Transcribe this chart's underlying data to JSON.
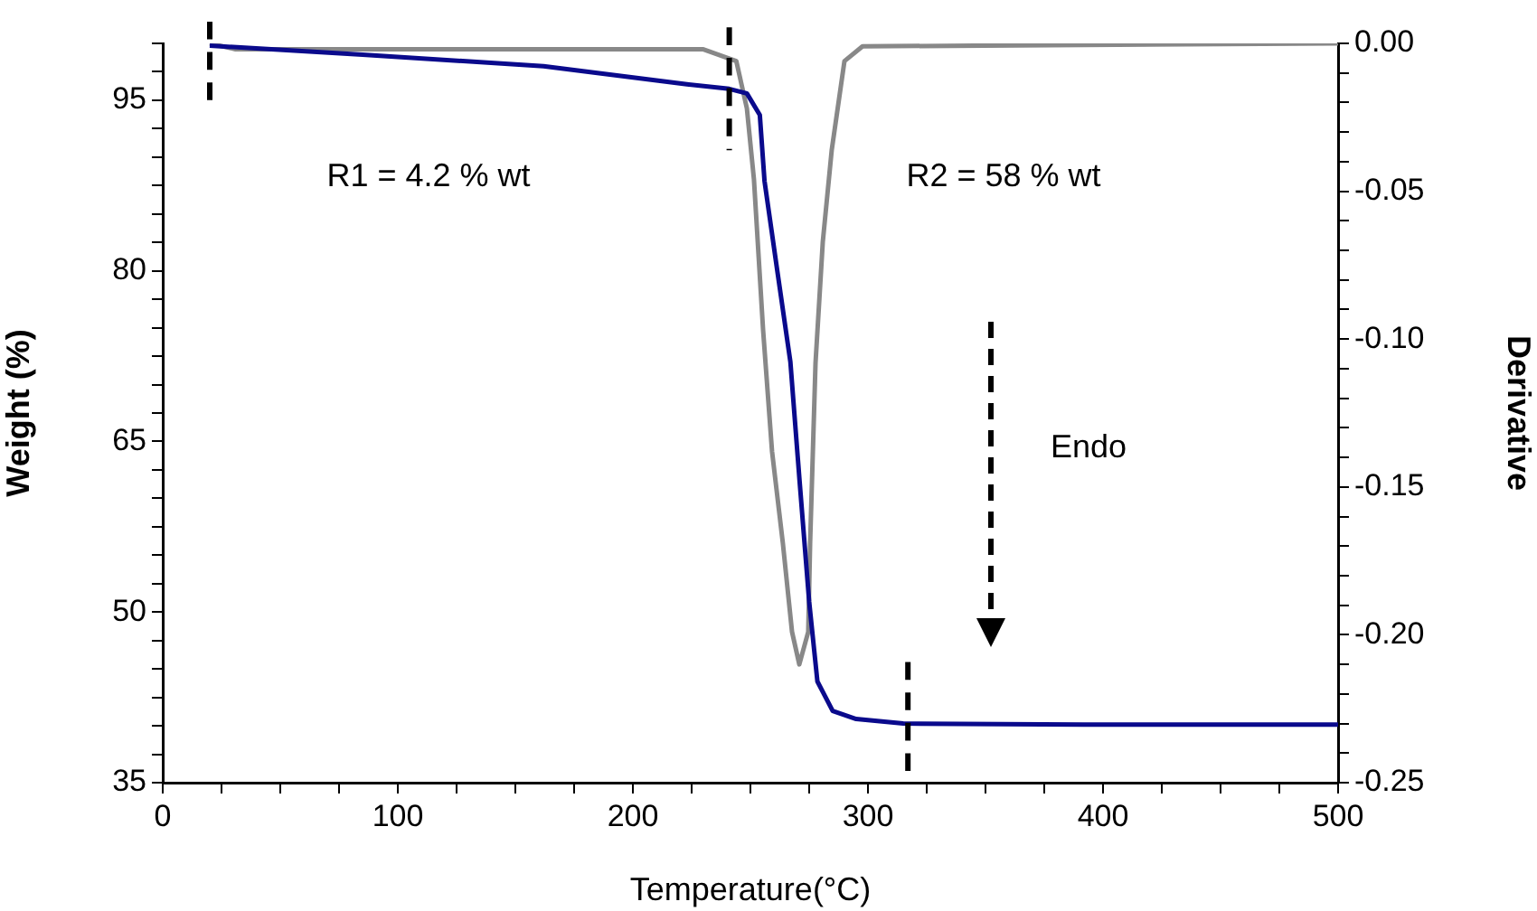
{
  "chart_data": {
    "type": "line",
    "xlabel": "Temperature(°C)",
    "ylabel": "Weight (%)",
    "y2label": "Derivative",
    "xlim": [
      0,
      500
    ],
    "xticks": [
      0,
      {
        "value": 25,
        "label": null
      },
      100,
      {
        "value": 50,
        "label": null
      },
      {
        "value": 75,
        "label": null
      },
      {
        "value": 125,
        "label": null
      },
      {
        "value": 150,
        "label": null
      },
      {
        "value": 175,
        "label": null
      },
      200,
      {
        "value": 225,
        "label": null
      },
      {
        "value": 250,
        "label": null
      },
      {
        "value": 275,
        "label": null
      },
      300,
      {
        "value": 325,
        "label": null
      },
      {
        "value": 350,
        "label": null
      },
      {
        "value": 375,
        "label": null
      },
      400,
      {
        "value": 425,
        "label": null
      },
      {
        "value": 450,
        "label": null
      },
      {
        "value": 475,
        "label": null
      },
      500
    ],
    "ylim": [
      35,
      100
    ],
    "yticks": [
      35,
      {
        "value": 37.5,
        "label": null
      },
      {
        "value": 40,
        "label": null
      },
      {
        "value": 42.5,
        "label": null
      },
      {
        "value": 45,
        "label": null
      },
      {
        "value": 47.5,
        "label": null
      },
      50,
      {
        "value": 52.5,
        "label": null
      },
      {
        "value": 55,
        "label": null
      },
      {
        "value": 57.5,
        "label": null
      },
      {
        "value": 60,
        "label": null
      },
      {
        "value": 62.5,
        "label": null
      },
      65,
      {
        "value": 67.5,
        "label": null
      },
      {
        "value": 70,
        "label": null
      },
      {
        "value": 72.5,
        "label": null
      },
      {
        "value": 75,
        "label": null
      },
      {
        "value": 77.5,
        "label": null
      },
      80,
      {
        "value": 82.5,
        "label": null
      },
      {
        "value": 85,
        "label": null
      },
      {
        "value": 87.5,
        "label": null
      },
      {
        "value": 90,
        "label": null
      },
      {
        "value": 92.5,
        "label": null
      },
      95,
      {
        "value": 97.5,
        "label": null
      },
      {
        "value": 100,
        "label": null
      }
    ],
    "y2lim": [
      -0.25,
      0
    ],
    "y2ticks": [
      {
        "value": -0.25,
        "label": "-0.25"
      },
      {
        "value": -0.24,
        "label": null
      },
      {
        "value": -0.23,
        "label": null
      },
      {
        "value": -0.22,
        "label": null
      },
      {
        "value": -0.21,
        "label": null
      },
      {
        "value": -0.2,
        "label": "-0.20"
      },
      {
        "value": -0.19,
        "label": null
      },
      {
        "value": -0.18,
        "label": null
      },
      {
        "value": -0.17,
        "label": null
      },
      {
        "value": -0.16,
        "label": null
      },
      {
        "value": -0.15,
        "label": "-0.15"
      },
      {
        "value": -0.14,
        "label": null
      },
      {
        "value": -0.13,
        "label": null
      },
      {
        "value": -0.12,
        "label": null
      },
      {
        "value": -0.11,
        "label": null
      },
      {
        "value": -0.1,
        "label": "-0.10"
      },
      {
        "value": -0.09,
        "label": null
      },
      {
        "value": -0.08,
        "label": null
      },
      {
        "value": -0.07,
        "label": null
      },
      {
        "value": -0.06,
        "label": null
      },
      {
        "value": -0.05,
        "label": "-0.05"
      },
      {
        "value": -0.04,
        "label": null
      },
      {
        "value": -0.03,
        "label": null
      },
      {
        "value": -0.02,
        "label": null
      },
      {
        "value": -0.01,
        "label": null
      },
      {
        "value": 0,
        "label": "0.00"
      }
    ],
    "grid": false,
    "legend": false,
    "marker": "none",
    "line_style": "solid",
    "series": [
      {
        "color": "#0a0a8c",
        "x": [
          20,
          85,
          162,
          223,
          241,
          248.5,
          254,
          256,
          261.5,
          267,
          271,
          275,
          278.5,
          285,
          295,
          315,
          392,
          500
        ],
        "values": [
          99.8,
          99,
          98,
          96.4,
          96,
          95.6,
          93.7,
          87.9,
          79.9,
          72,
          61.3,
          50.9,
          43.9,
          41.3,
          40.6,
          40.2,
          40.1,
          40.1
        ]
      },
      {
        "color": "#888888",
        "axis": "y2",
        "x": [
          20,
          31,
          230,
          244,
          248.5,
          251.5,
          255.4,
          259.2,
          263.8,
          267.7,
          270.8,
          274.6,
          275.4,
          277.7,
          280.8,
          284.6,
          290,
          297.7,
          500
        ],
        "values": [
          0,
          -0.002,
          -0.002,
          -0.006,
          -0.022,
          -0.046,
          -0.097,
          -0.138,
          -0.169,
          -0.199,
          -0.21,
          -0.199,
          -0.169,
          -0.108,
          -0.067,
          -0.036,
          -0.006,
          -0.001,
          0
        ]
      }
    ],
    "ref_lines": [
      {
        "axis": "x",
        "value": 20,
        "line_style": "dashed",
        "color": "#000000"
      },
      {
        "axis": "x",
        "value": 241,
        "line_style": "dashed",
        "color": "#000000"
      },
      {
        "axis": "x",
        "value": 317,
        "line_style": "dashed",
        "color": "#000000"
      }
    ],
    "annotations": [
      "R1 = 4.2 % wt",
      "R2 = 58 % wt",
      "Endo"
    ]
  }
}
